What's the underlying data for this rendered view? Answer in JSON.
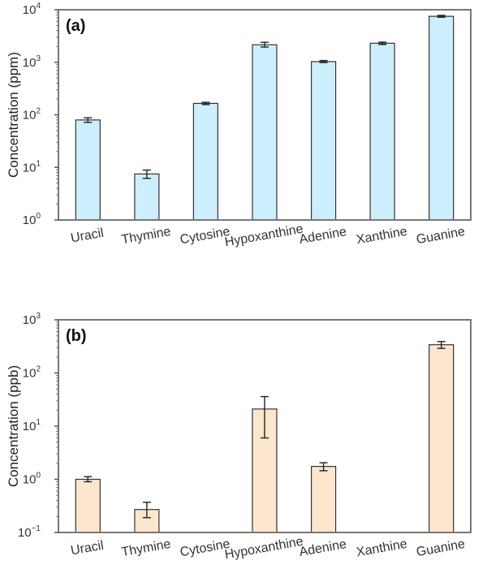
{
  "chart_data": [
    {
      "type": "bar",
      "panel_label": "(a)",
      "ylabel": "Concentration (ppm)",
      "yscale": "log",
      "ylim": [
        1,
        10000
      ],
      "yticks": [
        {
          "base": "10",
          "exp": "0"
        },
        {
          "base": "10",
          "exp": "1"
        },
        {
          "base": "10",
          "exp": "2"
        },
        {
          "base": "10",
          "exp": "3"
        },
        {
          "base": "10",
          "exp": "4"
        }
      ],
      "categories": [
        "Uracil",
        "Thymine",
        "Cytosine",
        "Hypoxanthine",
        "Adenine",
        "Xanthine",
        "Guanine"
      ],
      "values": [
        80,
        7.5,
        165,
        2150,
        1030,
        2300,
        7500
      ],
      "err_low": [
        72,
        6.2,
        157,
        1950,
        990,
        2180,
        7200
      ],
      "err_high": [
        88,
        8.9,
        173,
        2400,
        1080,
        2420,
        7800
      ],
      "bar_color": "#cdeefc",
      "edge_color": "#333333"
    },
    {
      "type": "bar",
      "panel_label": "(b)",
      "ylabel": "Concentration (ppb)",
      "yscale": "log",
      "ylim": [
        0.1,
        1000
      ],
      "yticks": [
        {
          "base": "10",
          "exp": "−1"
        },
        {
          "base": "10",
          "exp": "0"
        },
        {
          "base": "10",
          "exp": "1"
        },
        {
          "base": "10",
          "exp": "2"
        },
        {
          "base": "10",
          "exp": "3"
        }
      ],
      "categories": [
        "Uracil",
        "Thymine",
        "Cytosine",
        "Hypoxanthine",
        "Adenine",
        "Xanthine",
        "Guanine"
      ],
      "values": [
        1.0,
        0.27,
        null,
        21,
        1.75,
        null,
        340
      ],
      "err_low": [
        0.9,
        0.19,
        null,
        6,
        1.45,
        null,
        290
      ],
      "err_high": [
        1.12,
        0.37,
        null,
        36,
        2.05,
        null,
        390
      ],
      "bar_color": "#fde6ce",
      "edge_color": "#333333"
    }
  ]
}
